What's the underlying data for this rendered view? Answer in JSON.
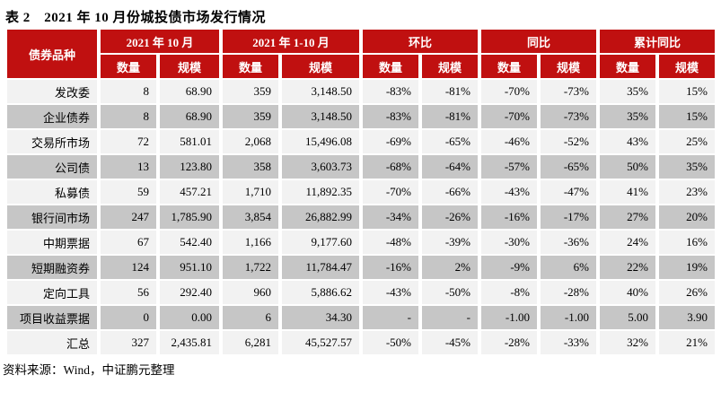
{
  "title": "表 2　2021 年 10 月份城投债市场发行情况",
  "footer": "资料来源：Wind，中证鹏元整理",
  "colors": {
    "header_red": "#C01010",
    "row_light": "#F2F2F2",
    "row_gray": "#C6C6C6",
    "header_text": "#FFFFFF"
  },
  "table": {
    "corner_header": "债券品种",
    "groups": [
      {
        "label": "2021 年 10 月"
      },
      {
        "label": "2021 年 1-10 月"
      },
      {
        "label": "环比"
      },
      {
        "label": "同比"
      },
      {
        "label": "累计同比"
      }
    ],
    "subheaders": [
      "数量",
      "规模"
    ],
    "rows": [
      {
        "label": "发改委",
        "style": "group",
        "values": [
          "8",
          "68.90",
          "359",
          "3,148.50",
          "-83%",
          "-81%",
          "-70%",
          "-73%",
          "35%",
          "15%"
        ]
      },
      {
        "label": "企业债券",
        "style": "sub",
        "values": [
          "8",
          "68.90",
          "359",
          "3,148.50",
          "-83%",
          "-81%",
          "-70%",
          "-73%",
          "35%",
          "15%"
        ]
      },
      {
        "label": "交易所市场",
        "style": "group",
        "values": [
          "72",
          "581.01",
          "2,068",
          "15,496.08",
          "-69%",
          "-65%",
          "-46%",
          "-52%",
          "43%",
          "25%"
        ]
      },
      {
        "label": "公司债",
        "style": "sub",
        "values": [
          "13",
          "123.80",
          "358",
          "3,603.73",
          "-68%",
          "-64%",
          "-57%",
          "-65%",
          "50%",
          "35%"
        ]
      },
      {
        "label": "私募债",
        "style": "sub",
        "values": [
          "59",
          "457.21",
          "1,710",
          "11,892.35",
          "-70%",
          "-66%",
          "-43%",
          "-47%",
          "41%",
          "23%"
        ]
      },
      {
        "label": "银行间市场",
        "style": "group",
        "values": [
          "247",
          "1,785.90",
          "3,854",
          "26,882.99",
          "-34%",
          "-26%",
          "-16%",
          "-17%",
          "27%",
          "20%"
        ]
      },
      {
        "label": "中期票据",
        "style": "sub",
        "values": [
          "67",
          "542.40",
          "1,166",
          "9,177.60",
          "-48%",
          "-39%",
          "-30%",
          "-36%",
          "24%",
          "16%"
        ]
      },
      {
        "label": "短期融资券",
        "style": "sub",
        "values": [
          "124",
          "951.10",
          "1,722",
          "11,784.47",
          "-16%",
          "2%",
          "-9%",
          "6%",
          "22%",
          "19%"
        ]
      },
      {
        "label": "定向工具",
        "style": "sub",
        "values": [
          "56",
          "292.40",
          "960",
          "5,886.62",
          "-43%",
          "-50%",
          "-8%",
          "-28%",
          "40%",
          "26%"
        ]
      },
      {
        "label": "项目收益票据",
        "style": "sub",
        "values": [
          "0",
          "0.00",
          "6",
          "34.30",
          "-",
          "-",
          "-1.00",
          "-1.00",
          "5.00",
          "3.90"
        ]
      },
      {
        "label": "汇总",
        "style": "total",
        "values": [
          "327",
          "2,435.81",
          "6,281",
          "45,527.57",
          "-50%",
          "-45%",
          "-28%",
          "-33%",
          "32%",
          "21%"
        ]
      }
    ]
  }
}
